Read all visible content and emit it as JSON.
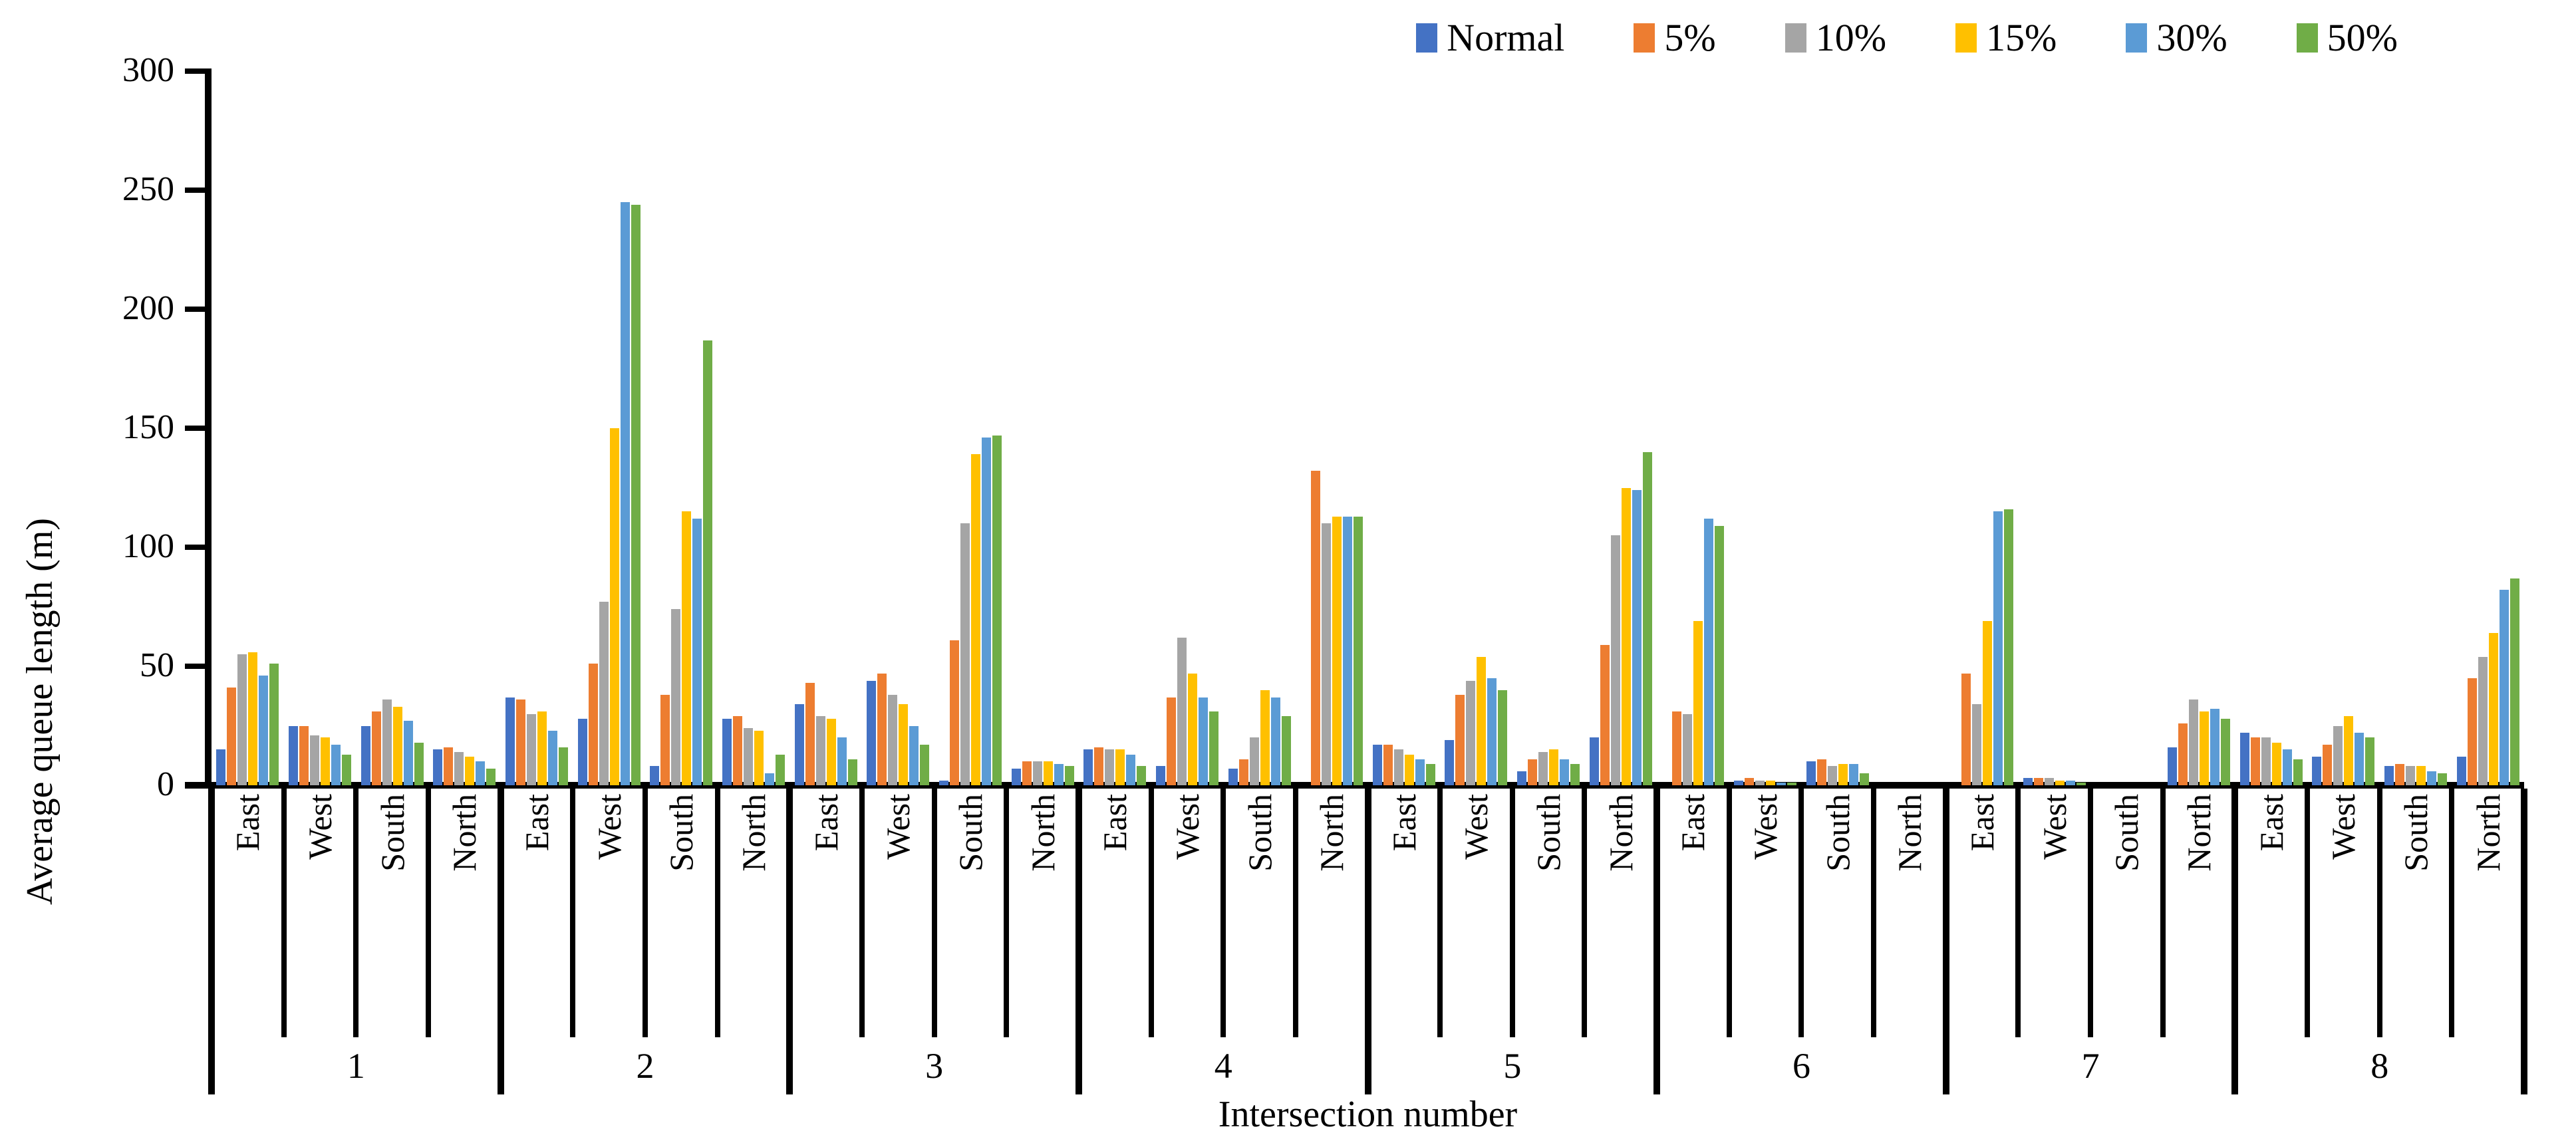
{
  "chart_data": {
    "type": "bar",
    "title": "",
    "ylabel": "Average queue length (m)",
    "xlabel": "Intersection number",
    "ylim": [
      0,
      300
    ],
    "yticks": [
      0,
      50,
      100,
      150,
      200,
      250,
      300
    ],
    "grid": "off",
    "legend_position": "top-right",
    "intersections": [
      "1",
      "2",
      "3",
      "4",
      "5",
      "6",
      "7",
      "8"
    ],
    "directions": [
      "East",
      "West",
      "South",
      "North"
    ],
    "series": [
      {
        "name": "Normal",
        "color": "#4472C4",
        "values": [
          [
            15,
            25,
            25,
            15
          ],
          [
            37,
            28,
            8,
            28
          ],
          [
            34,
            44,
            2,
            7
          ],
          [
            15,
            8,
            7,
            0
          ],
          [
            17,
            19,
            6,
            20
          ],
          [
            0,
            2,
            10,
            0
          ],
          [
            0,
            3,
            0,
            16
          ],
          [
            22,
            12,
            8,
            12
          ]
        ]
      },
      {
        "name": "5%",
        "color": "#ED7D31",
        "values": [
          [
            41,
            25,
            31,
            16
          ],
          [
            36,
            51,
            38,
            29
          ],
          [
            43,
            47,
            61,
            10
          ],
          [
            16,
            37,
            11,
            132
          ],
          [
            17,
            38,
            11,
            59
          ],
          [
            31,
            3,
            11,
            0
          ],
          [
            47,
            3,
            0,
            26
          ],
          [
            20,
            17,
            9,
            45
          ]
        ]
      },
      {
        "name": "10%",
        "color": "#A5A5A5",
        "values": [
          [
            55,
            21,
            36,
            14
          ],
          [
            30,
            77,
            74,
            24
          ],
          [
            29,
            38,
            110,
            10
          ],
          [
            15,
            62,
            20,
            110
          ],
          [
            15,
            44,
            14,
            105
          ],
          [
            30,
            2,
            8,
            0
          ],
          [
            34,
            3,
            0,
            36
          ],
          [
            20,
            25,
            8,
            54
          ]
        ]
      },
      {
        "name": "15%",
        "color": "#FFC000",
        "values": [
          [
            56,
            20,
            33,
            12
          ],
          [
            31,
            150,
            115,
            23
          ],
          [
            28,
            34,
            139,
            10
          ],
          [
            15,
            47,
            40,
            113
          ],
          [
            13,
            54,
            15,
            125
          ],
          [
            69,
            2,
            9,
            0
          ],
          [
            69,
            2,
            0,
            31
          ],
          [
            18,
            29,
            8,
            64
          ]
        ]
      },
      {
        "name": "30%",
        "color": "#5B9BD5",
        "values": [
          [
            46,
            17,
            27,
            10
          ],
          [
            23,
            245,
            112,
            5
          ],
          [
            20,
            25,
            146,
            9
          ],
          [
            13,
            37,
            37,
            113
          ],
          [
            11,
            45,
            11,
            124
          ],
          [
            112,
            1,
            9,
            0
          ],
          [
            115,
            2,
            0,
            32
          ],
          [
            15,
            22,
            6,
            82
          ]
        ]
      },
      {
        "name": "50%",
        "color": "#70AD47",
        "values": [
          [
            51,
            13,
            18,
            7
          ],
          [
            16,
            244,
            187,
            13
          ],
          [
            11,
            17,
            147,
            8
          ],
          [
            8,
            31,
            29,
            113
          ],
          [
            9,
            40,
            9,
            140
          ],
          [
            109,
            1,
            5,
            0
          ],
          [
            116,
            1,
            0,
            28
          ],
          [
            11,
            20,
            5,
            87
          ]
        ]
      }
    ]
  }
}
